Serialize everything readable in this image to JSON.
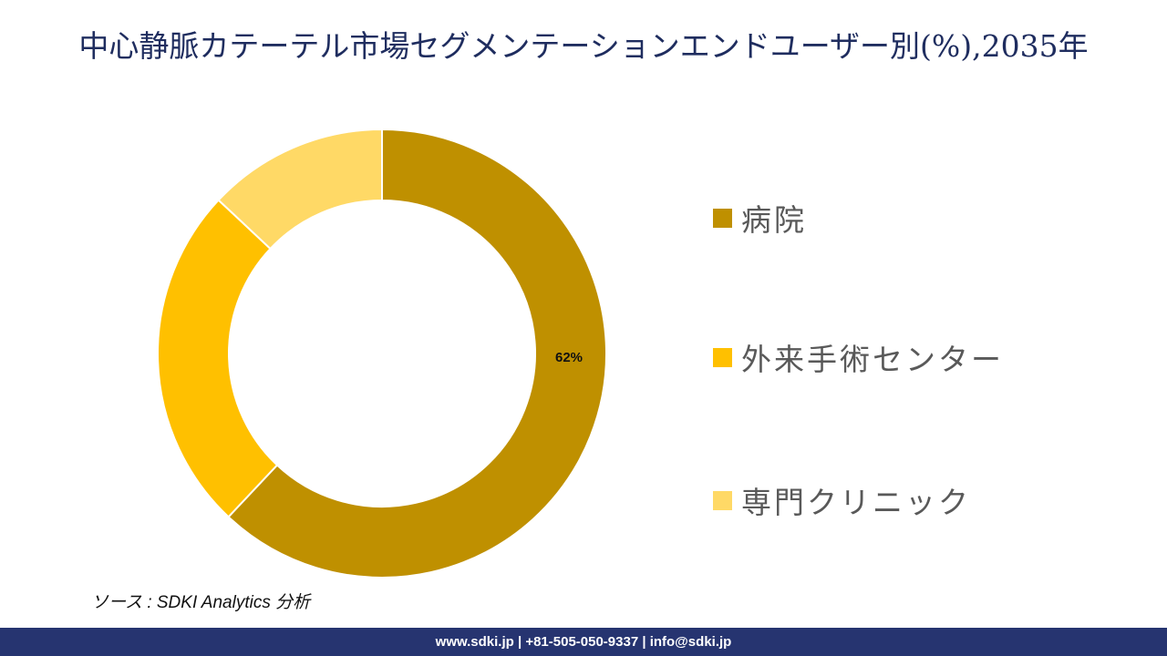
{
  "title": "中心静脈カテーテル市場セグメンテーションエンドユーザー別(%),2035年",
  "chart_data": {
    "type": "pie",
    "subtype": "donut",
    "title": "中心静脈カテーテル市場セグメンテーションエンドユーザー別(%),2035年",
    "categories": [
      "病院",
      "外来手術センター",
      "専門クリニック"
    ],
    "values": [
      62,
      25,
      13
    ],
    "colors": [
      "#bf9000",
      "#ffc000",
      "#ffd966"
    ],
    "data_labels": [
      "62%",
      "",
      ""
    ],
    "start_angle": "12 o'clock, clockwise",
    "legend_position": "right",
    "unit": "%"
  },
  "labels": {
    "hospital_pct": "62%"
  },
  "legend": {
    "items": [
      {
        "label": "病院",
        "color": "#bf9000"
      },
      {
        "label": "外来手術センター",
        "color": "#ffc000"
      },
      {
        "label": "専門クリニック",
        "color": "#ffd966"
      }
    ]
  },
  "source": "ソース : SDKI Analytics  分析",
  "footer": {
    "text": "www.sdki.jp | +81-505-050-9337 | info@sdki.jp"
  }
}
